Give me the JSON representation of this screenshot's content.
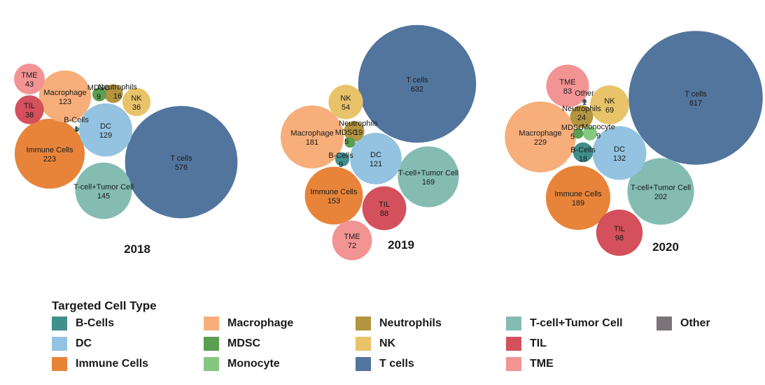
{
  "chart_data": [
    {
      "type": "bubble",
      "year": "2018",
      "bubbles": [
        {
          "name": "T cells",
          "value": 576
        },
        {
          "name": "Immune Cells",
          "value": 223
        },
        {
          "name": "T-cell+Tumor Cell",
          "value": 145
        },
        {
          "name": "DC",
          "value": 129
        },
        {
          "name": "Macrophage",
          "value": 123
        },
        {
          "name": "TME",
          "value": 43
        },
        {
          "name": "TIL",
          "value": 38
        },
        {
          "name": "NK",
          "value": 36
        },
        {
          "name": "Neutrophils",
          "value": 16
        },
        {
          "name": "MDSC",
          "value": 9
        },
        {
          "name": "B-Cells",
          "value": 1
        }
      ]
    },
    {
      "type": "bubble",
      "year": "2019",
      "bubbles": [
        {
          "name": "T cells",
          "value": 632
        },
        {
          "name": "Macrophage",
          "value": 181
        },
        {
          "name": "T-cell+Tumor Cell",
          "value": 169
        },
        {
          "name": "Immune Cells",
          "value": 153
        },
        {
          "name": "DC",
          "value": 121
        },
        {
          "name": "TIL",
          "value": 88
        },
        {
          "name": "TME",
          "value": 72
        },
        {
          "name": "NK",
          "value": 54
        },
        {
          "name": "Neutrophils",
          "value": 19
        },
        {
          "name": "B-Cells",
          "value": 9
        },
        {
          "name": "MDSC",
          "value": 5
        }
      ]
    },
    {
      "type": "bubble",
      "year": "2020",
      "bubbles": [
        {
          "name": "T cells",
          "value": 817
        },
        {
          "name": "Macrophage",
          "value": 229
        },
        {
          "name": "T-cell+Tumor Cell",
          "value": 202
        },
        {
          "name": "Immune Cells",
          "value": 189
        },
        {
          "name": "DC",
          "value": 132
        },
        {
          "name": "TIL",
          "value": 98
        },
        {
          "name": "TME",
          "value": 83
        },
        {
          "name": "NK",
          "value": 69
        },
        {
          "name": "Neutrophils",
          "value": 24
        },
        {
          "name": "B-Cells",
          "value": 18
        },
        {
          "name": "Monocyte",
          "value": 9
        },
        {
          "name": "MDSC",
          "value": 5
        },
        {
          "name": "Other",
          "value": 1
        }
      ]
    }
  ],
  "colors": {
    "B-Cells": "#3f8f8c",
    "DC": "#93c3e0",
    "Immune Cells": "#e8843a",
    "Macrophage": "#f7ae7a",
    "MDSC": "#5a9e52",
    "Monocyte": "#86c77f",
    "Neutrophils": "#b39440",
    "NK": "#e8c36a",
    "T cells": "#52759e",
    "T-cell+Tumor Cell": "#84bcb2",
    "TIL": "#d4505c",
    "TME": "#f29394",
    "Other": "#7a7478"
  },
  "legend": {
    "title": "Targeted Cell Type",
    "items": [
      "B-Cells",
      "Macrophage",
      "Neutrophils",
      "T-cell+Tumor Cell",
      "Other",
      "DC",
      "MDSC",
      "NK",
      "TIL",
      "Immune Cells",
      "Monocyte",
      "T cells",
      "TME"
    ]
  }
}
